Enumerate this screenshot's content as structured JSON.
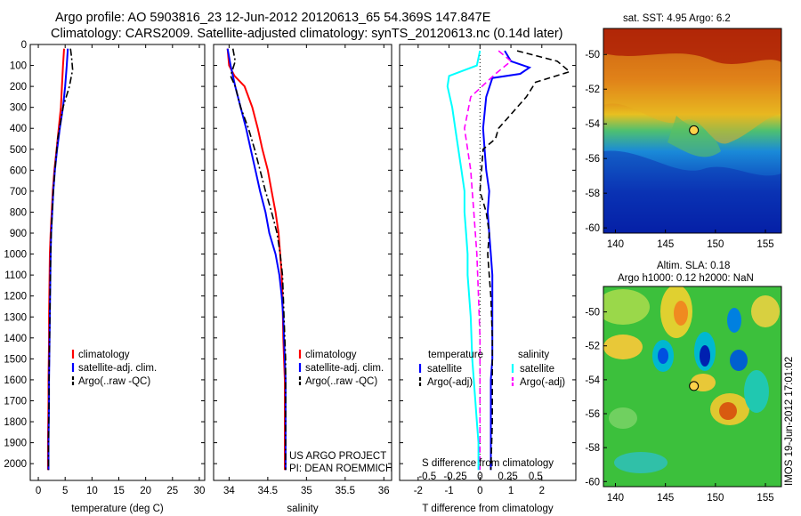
{
  "header": {
    "line1": "Argo profile: AO 5903816_23 12-Jun-2012 20120613_65 54.369S 147.847E",
    "line2": "Climatology: CARS2009. Satellite-adjusted climatology: synTS_20120613.nc (0.14d later)"
  },
  "depth_ticks": [
    0,
    100,
    200,
    300,
    400,
    500,
    600,
    700,
    800,
    900,
    1000,
    1100,
    1200,
    1300,
    1400,
    1500,
    1600,
    1700,
    1800,
    1900,
    2000
  ],
  "colors": {
    "red": "#ff0000",
    "blue": "#0000ff",
    "black": "#000000",
    "cyan": "#00ffff",
    "magenta": "#ff00ff",
    "dotted": "#000000"
  },
  "chart_data": [
    {
      "type": "line",
      "xlabel": "temperature (deg C)",
      "xticks": [
        "0",
        "5",
        "10",
        "15",
        "20",
        "25",
        "30"
      ],
      "xlim": [
        -1.5,
        31
      ],
      "ylim": [
        2080,
        0
      ],
      "legend": [
        "climatology",
        "satellite-adj. clim.",
        "Argo(..raw -QC)"
      ],
      "series": [
        {
          "name": "climatology",
          "color": "red",
          "dash": "none",
          "x": [
            4.8,
            4.6,
            4.4,
            4.2,
            3.8,
            3.4,
            3.0,
            2.7,
            2.5,
            2.3,
            2.15,
            2.1,
            2.05,
            2.0,
            2.0,
            1.95,
            1.9,
            1.9,
            1.85,
            1.8,
            1.8
          ],
          "y": [
            20,
            100,
            200,
            300,
            400,
            500,
            600,
            700,
            800,
            900,
            1000,
            1100,
            1200,
            1300,
            1400,
            1500,
            1600,
            1700,
            1800,
            1900,
            2030
          ]
        },
        {
          "name": "satellite-adj. clim.",
          "color": "blue",
          "dash": "none",
          "x": [
            5.5,
            5.3,
            5.0,
            4.6,
            4.0,
            3.5,
            3.1,
            2.8,
            2.6,
            2.4,
            2.3,
            2.25,
            2.2,
            2.15,
            2.1,
            2.05,
            2.0,
            2.0,
            1.95,
            1.9,
            1.9
          ],
          "y": [
            20,
            100,
            200,
            300,
            400,
            500,
            600,
            700,
            800,
            900,
            1000,
            1100,
            1200,
            1300,
            1400,
            1500,
            1600,
            1700,
            1800,
            1900,
            2030
          ]
        },
        {
          "name": "Argo(..raw -QC)",
          "color": "black",
          "dash": "dashdot",
          "x": [
            6.0,
            6.2,
            6.4,
            5.8,
            4.6,
            3.6,
            3.1,
            2.8,
            2.6,
            2.4,
            2.3,
            2.25,
            2.2,
            2.15,
            2.1,
            2.05,
            2.0,
            2.0,
            1.95,
            1.9,
            1.9
          ],
          "y": [
            20,
            60,
            120,
            200,
            300,
            450,
            600,
            700,
            800,
            900,
            1000,
            1100,
            1200,
            1300,
            1400,
            1500,
            1600,
            1700,
            1800,
            1900,
            2030
          ]
        }
      ]
    },
    {
      "type": "line",
      "xlabel": "salinity",
      "xticks": [
        "34",
        "34.5",
        "35",
        "35.5",
        "36"
      ],
      "xlim": [
        33.8,
        36.1
      ],
      "ylim": [
        2080,
        0
      ],
      "legend": [
        "climatology",
        "satellite-adj. clim.",
        "Argo(..raw -QC)"
      ],
      "annotation": [
        "US ARGO PROJECT",
        "PI: DEAN ROEMMICH"
      ],
      "series": [
        {
          "name": "climatology",
          "color": "red",
          "dash": "none",
          "x": [
            33.98,
            34.0,
            34.07,
            34.2,
            34.3,
            34.37,
            34.43,
            34.5,
            34.55,
            34.6,
            34.64,
            34.66,
            34.68,
            34.69,
            34.7,
            34.71,
            34.72,
            34.72,
            34.72,
            34.72,
            34.72
          ],
          "y": [
            20,
            100,
            150,
            200,
            300,
            400,
            500,
            600,
            700,
            800,
            900,
            1000,
            1100,
            1200,
            1400,
            1500,
            1600,
            1700,
            1800,
            1900,
            2030
          ]
        },
        {
          "name": "satellite-adj. clim.",
          "color": "blue",
          "dash": "none",
          "x": [
            33.98,
            34.02,
            34.08,
            34.15,
            34.22,
            34.28,
            34.34,
            34.4,
            34.47,
            34.52,
            34.6,
            34.65,
            34.68,
            34.7,
            34.71,
            34.72,
            34.73,
            34.73,
            34.73,
            34.73
          ],
          "y": [
            20,
            100,
            200,
            300,
            400,
            500,
            600,
            700,
            800,
            900,
            1000,
            1100,
            1200,
            1300,
            1400,
            1500,
            1600,
            1700,
            1800,
            2030
          ]
        },
        {
          "name": "Argo(..raw -QC)",
          "color": "black",
          "dash": "dashdot",
          "x": [
            34.05,
            34.08,
            34.02,
            34.08,
            34.15,
            34.25,
            34.33,
            34.4,
            34.47,
            34.55,
            34.62,
            34.66,
            34.69,
            34.7,
            34.71,
            34.72,
            34.73,
            34.73,
            34.73,
            34.73
          ],
          "y": [
            20,
            80,
            150,
            200,
            300,
            400,
            500,
            600,
            700,
            800,
            900,
            1000,
            1100,
            1200,
            1300,
            1400,
            1500,
            1600,
            1700,
            2030
          ]
        }
      ]
    },
    {
      "type": "line",
      "xlabel": "T difference from climatology",
      "xticks": [
        "-2",
        "-1",
        "0",
        "1",
        "2"
      ],
      "xlim": [
        -2.6,
        3.1
      ],
      "x2label": "S difference from climatology",
      "x2ticks": [
        "-0.5",
        "-0.25",
        "0",
        "0.25",
        "0.5"
      ],
      "ylim": [
        2080,
        0
      ],
      "legend": {
        "temperature_title": "temperature",
        "salinity_title": "salinity",
        "entries": [
          "satellite",
          "Argo(-adj)",
          "satellite",
          "Argo(-adj)"
        ]
      },
      "series": [
        {
          "name": "satellite",
          "group": "temperature",
          "color": "blue",
          "dash": "none",
          "x": [
            0.8,
            1.0,
            1.6,
            1.3,
            0.4,
            0.2,
            0.1,
            0.15,
            0.2,
            0.3,
            0.25,
            0.3,
            0.35,
            0.4,
            0.4,
            0.4,
            0.4,
            0.4,
            0.35,
            0.35,
            0.35,
            0.35,
            0.35
          ],
          "y": [
            30,
            80,
            110,
            140,
            160,
            250,
            400,
            500,
            600,
            700,
            800,
            900,
            1000,
            1100,
            1200,
            1300,
            1400,
            1500,
            1600,
            1700,
            1800,
            1900,
            2030
          ]
        },
        {
          "name": "Argo(-adj)",
          "group": "temperature",
          "color": "black",
          "dash": "dash",
          "x": [
            1.2,
            2.5,
            2.9,
            1.8,
            1.5,
            0.9,
            0.6,
            0.5,
            0.1,
            0.0,
            0.2,
            0.3,
            0.25,
            0.3,
            0.35,
            0.4,
            0.4,
            0.4,
            0.4,
            0.35
          ],
          "y": [
            30,
            80,
            130,
            180,
            250,
            350,
            400,
            450,
            500,
            700,
            800,
            900,
            1000,
            1100,
            1200,
            1400,
            1500,
            1600,
            1800,
            2030
          ]
        },
        {
          "name": "satellite",
          "group": "salinity",
          "color": "cyan",
          "dash": "none",
          "x": [
            0.0,
            -0.1,
            -1.0,
            -1.05,
            -0.9,
            -0.8,
            -0.7,
            -0.6,
            -0.5,
            -0.5,
            -0.45,
            -0.4,
            -0.4,
            -0.3,
            -0.25,
            -0.15,
            -0.1,
            -0.05,
            -0.05
          ],
          "y": [
            30,
            100,
            150,
            200,
            300,
            400,
            500,
            600,
            700,
            800,
            900,
            1000,
            1100,
            1300,
            1500,
            1700,
            1800,
            1900,
            2030
          ]
        },
        {
          "name": "Argo(-adj)",
          "group": "salinity",
          "color": "magenta",
          "dash": "dash",
          "x": [
            0.6,
            1.0,
            0.5,
            -0.3,
            -0.5,
            -0.4,
            -0.3,
            -0.25,
            -0.2,
            -0.1,
            -0.05,
            0.0,
            0.0,
            0.0
          ],
          "y": [
            30,
            80,
            140,
            250,
            400,
            500,
            600,
            700,
            800,
            1000,
            1200,
            1400,
            1600,
            2030
          ]
        }
      ]
    }
  ],
  "sst_map": {
    "title": "sat. SST: 4.95 Argo: 6.2",
    "lon_ticks": [
      "140",
      "145",
      "150",
      "155"
    ],
    "lat_ticks": [
      "-50",
      "-52",
      "-54",
      "-56",
      "-58",
      "-60"
    ],
    "lon_range": [
      138.8,
      156.6
    ],
    "lat_range": [
      -60.3,
      -48.5
    ],
    "float_lon": 147.847,
    "float_lat": -54.369,
    "marker_color": "#ffd24a"
  },
  "sla_map": {
    "title_line1": "Altim. SLA: 0.18",
    "title_line2": "Argo h1000: 0.12 h2000: NaN",
    "lon_ticks": [
      "140",
      "145",
      "150",
      "155"
    ],
    "lat_ticks": [
      "-50",
      "-52",
      "-54",
      "-56",
      "-58",
      "-60"
    ],
    "lon_range": [
      138.8,
      156.6
    ],
    "lat_range": [
      -60.3,
      -48.5
    ],
    "float_lon": 147.847,
    "float_lat": -54.369,
    "marker_color": "#ffd24a"
  },
  "stamp": "IMOS 19-Jun-2012 17:01:02"
}
